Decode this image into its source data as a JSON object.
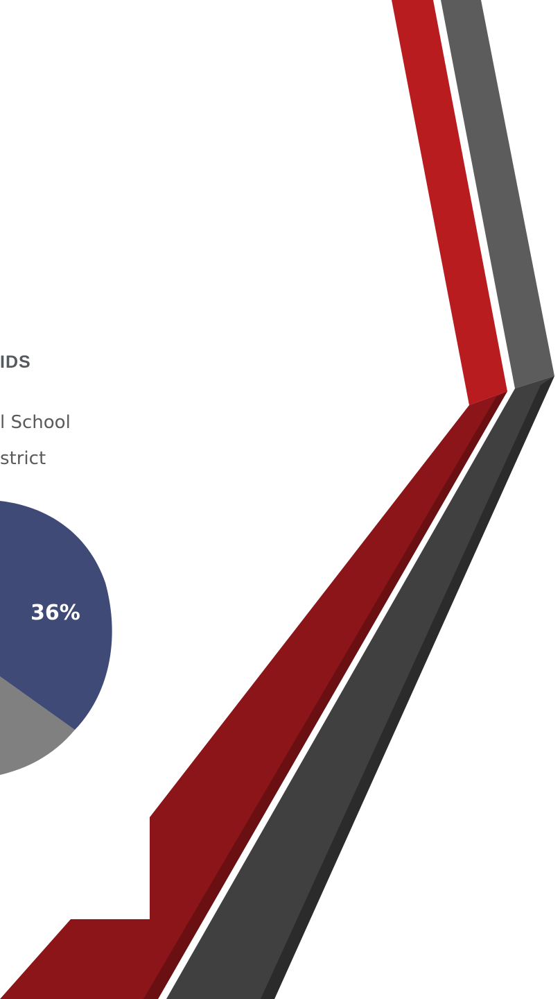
{
  "slide": {
    "heading_fragment": "IDS",
    "legend_line_1": "l School",
    "legend_line_2": "strict"
  },
  "chart_data": {
    "type": "pie",
    "slices": [
      {
        "label": "36%",
        "value": 36,
        "color": "#3f4a76"
      },
      {
        "label": "",
        "value": null,
        "color": "#808080"
      }
    ]
  },
  "colors": {
    "stripe_red": "#b91c1f",
    "stripe_red_dark": "#8b1518",
    "stripe_gray": "#5c5c5c",
    "stripe_gray_dark": "#404040"
  }
}
